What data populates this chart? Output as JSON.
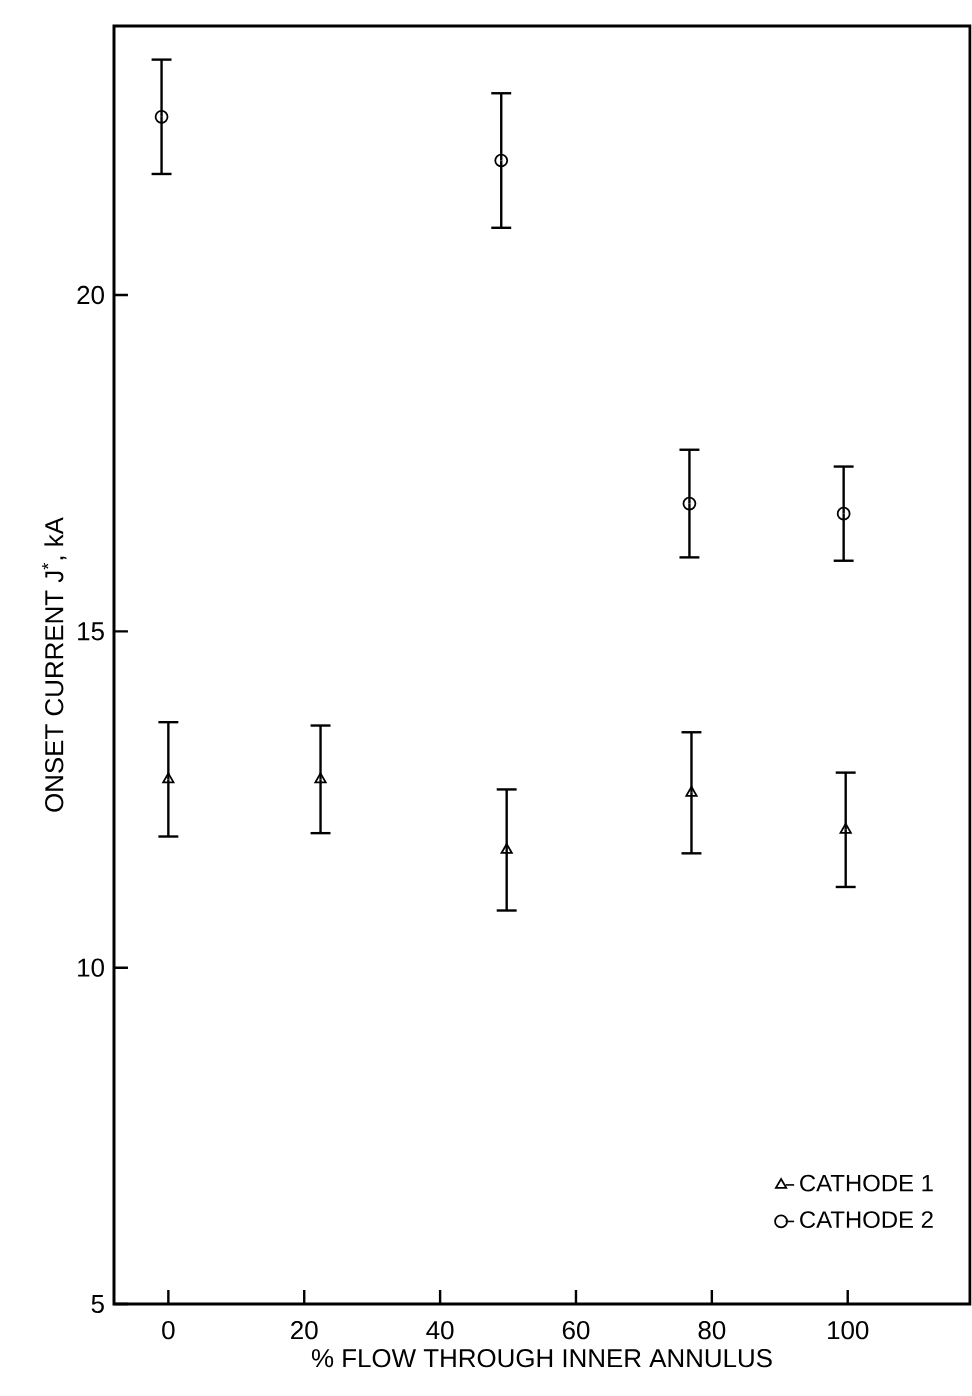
{
  "chart_data": {
    "type": "scatter",
    "xlabel": "% FLOW THROUGH INNER ANNULUS",
    "ylabel": "ONSET CURRENT J$^{*}$, kA",
    "xlim": [
      -8,
      118
    ],
    "xticks": [
      0,
      20,
      40,
      60,
      80,
      100
    ],
    "ylim": [
      5,
      24
    ],
    "yticks": [
      5,
      10,
      15,
      20
    ],
    "legend": "bottom right",
    "grid": false,
    "series": [
      {
        "name": "CATHODE 1",
        "color": "#000000",
        "marker": "triangle",
        "x": [
          0,
          22.4,
          49.8,
          77,
          99.7
        ],
        "values": [
          12.8,
          12.8,
          11.75,
          12.6,
          12.05
        ],
        "errors": [
          0.85,
          0.8,
          0.9,
          0.9,
          0.85
        ]
      },
      {
        "name": "CATHODE 2",
        "color": "#000000",
        "marker": "circle",
        "x": [
          -1,
          49,
          76.7,
          99.4
        ],
        "values": [
          22.65,
          22.0,
          16.9,
          16.75
        ],
        "errors": [
          0.85,
          1.0,
          0.8,
          0.7
        ]
      }
    ]
  }
}
